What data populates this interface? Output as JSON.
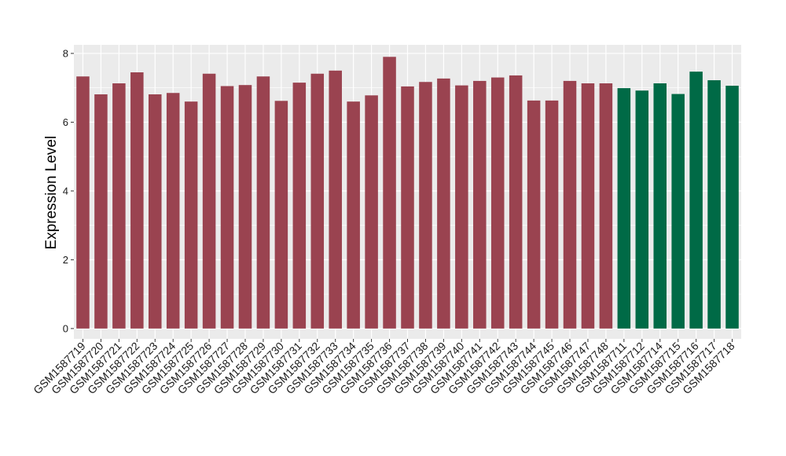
{
  "chart_data": {
    "type": "bar",
    "title": "",
    "xlabel": "",
    "ylabel": "Expression Level",
    "ylim": [
      -0.3,
      8.25
    ],
    "yticks": [
      0,
      2,
      4,
      6,
      8
    ],
    "grid": true,
    "legend": "none",
    "colors": {
      "group_1": "#9a4350",
      "group_2": "#006a46",
      "panel_bg": "#ebebeb",
      "grid": "#ffffff"
    },
    "categories": [
      "GSM1587719",
      "GSM1587720",
      "GSM1587721",
      "GSM1587722",
      "GSM1587723",
      "GSM1587724",
      "GSM1587725",
      "GSM1587726",
      "GSM1587727",
      "GSM1587728",
      "GSM1587729",
      "GSM1587730",
      "GSM1587731",
      "GSM1587732",
      "GSM1587733",
      "GSM1587734",
      "GSM1587735",
      "GSM1587736",
      "GSM1587737",
      "GSM1587738",
      "GSM1587739",
      "GSM1587740",
      "GSM1587741",
      "GSM1587742",
      "GSM1587743",
      "GSM1587744",
      "GSM1587745",
      "GSM1587746",
      "GSM1587747",
      "GSM1587748",
      "GSM1587711",
      "GSM1587712",
      "GSM1587714",
      "GSM1587715",
      "GSM1587716",
      "GSM1587717",
      "GSM1587718"
    ],
    "values": [
      7.33,
      6.81,
      7.13,
      7.45,
      6.81,
      6.85,
      6.6,
      7.41,
      7.05,
      7.08,
      7.33,
      6.62,
      7.15,
      7.41,
      7.5,
      6.6,
      6.78,
      7.9,
      7.04,
      7.17,
      7.27,
      7.07,
      7.2,
      7.3,
      7.36,
      6.63,
      6.63,
      7.2,
      7.13,
      7.13,
      6.99,
      6.92,
      7.13,
      6.82,
      7.47,
      7.22,
      7.06
    ],
    "groups": [
      1,
      1,
      1,
      1,
      1,
      1,
      1,
      1,
      1,
      1,
      1,
      1,
      1,
      1,
      1,
      1,
      1,
      1,
      1,
      1,
      1,
      1,
      1,
      1,
      1,
      1,
      1,
      1,
      1,
      1,
      2,
      2,
      2,
      2,
      2,
      2,
      2
    ]
  }
}
